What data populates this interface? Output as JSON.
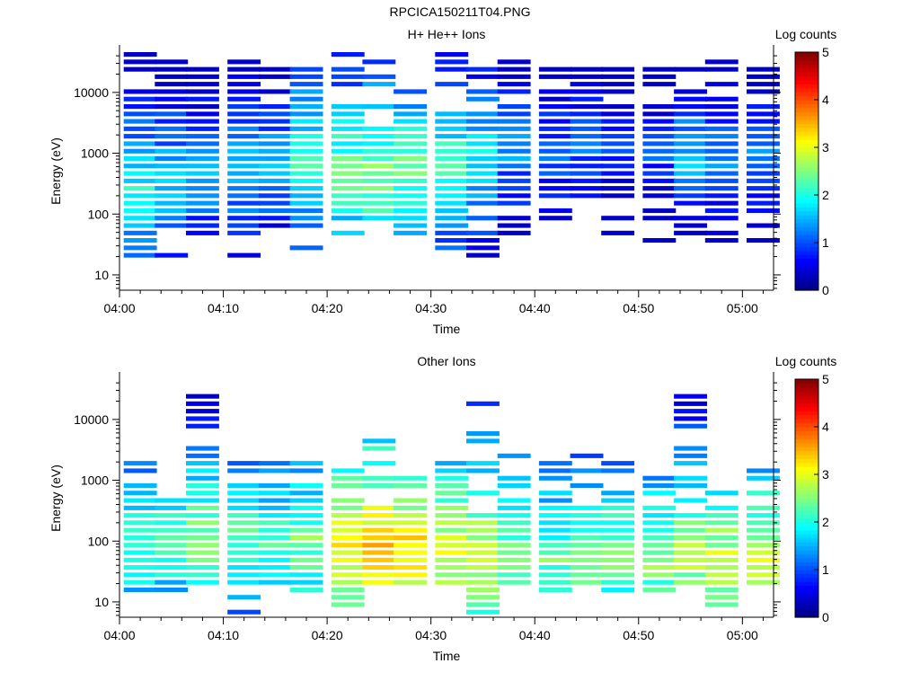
{
  "figure_title": "RPCICA150211T04.PNG",
  "chart_data": [
    {
      "type": "heatmap",
      "title": "H+ He++ Ions",
      "xlabel": "Time",
      "ylabel": "Energy (eV)",
      "yscale": "log",
      "ylim": [
        5.6,
        46000
      ],
      "xlim": [
        "04:00",
        "05:03"
      ],
      "xticks": [
        "04:00",
        "04:10",
        "04:20",
        "04:30",
        "04:40",
        "04:50",
        "05:00"
      ],
      "yticks": [
        "10",
        "100",
        "1000",
        "10000"
      ],
      "colorbar": {
        "label": "Log counts",
        "range": [
          0,
          5
        ],
        "ticks": [
          "0",
          "1",
          "2",
          "3",
          "4",
          "5"
        ]
      },
      "time_bins": [
        "04:02",
        "04:05",
        "04:08",
        "04:12",
        "04:15",
        "04:18",
        "04:22",
        "04:25",
        "04:28",
        "04:32",
        "04:35",
        "04:38",
        "04:42",
        "04:45",
        "04:48",
        "04:52",
        "04:55",
        "04:58",
        "05:02"
      ],
      "profiles": [
        {
          "low": 18,
          "high": 42000,
          "peak": 220,
          "level": 2.0,
          "sparse": 0.15
        },
        {
          "low": 18,
          "high": 38000,
          "peak": 300,
          "level": 1.8,
          "sparse": 0.2
        },
        {
          "low": 40,
          "high": 37000,
          "peak": 400,
          "level": 1.6,
          "sparse": 0.2
        },
        {
          "low": 18,
          "high": 36000,
          "peak": 550,
          "level": 1.7,
          "sparse": 0.25
        },
        {
          "low": 60,
          "high": 34000,
          "peak": 650,
          "level": 1.6,
          "sparse": 0.3
        },
        {
          "low": 22,
          "high": 34000,
          "peak": 700,
          "level": 2.2,
          "sparse": 0.3
        },
        {
          "low": 28,
          "high": 40000,
          "peak": 500,
          "level": 2.4,
          "sparse": 0.25
        },
        {
          "low": 30,
          "high": 34000,
          "peak": 400,
          "level": 2.6,
          "sparse": 0.3
        },
        {
          "low": 40,
          "high": 30000,
          "peak": 500,
          "level": 2.4,
          "sparse": 0.35
        },
        {
          "low": 25,
          "high": 40000,
          "peak": 700,
          "level": 2.2,
          "sparse": 0.3
        },
        {
          "low": 18,
          "high": 38000,
          "peak": 800,
          "level": 1.9,
          "sparse": 0.25
        },
        {
          "low": 45,
          "high": 35000,
          "peak": 1000,
          "level": 1.4,
          "sparse": 0.3
        },
        {
          "low": 70,
          "high": 28000,
          "peak": 1000,
          "level": 1.2,
          "sparse": 0.35
        },
        {
          "low": 90,
          "high": 30000,
          "peak": 1200,
          "level": 1.2,
          "sparse": 0.35
        },
        {
          "low": 45,
          "high": 30000,
          "peak": 1100,
          "level": 1.1,
          "sparse": 0.35
        },
        {
          "low": 25,
          "high": 34000,
          "peak": 1000,
          "level": 1.1,
          "sparse": 0.35
        },
        {
          "low": 40,
          "high": 30000,
          "peak": 800,
          "level": 1.6,
          "sparse": 0.3
        },
        {
          "low": 30,
          "high": 38000,
          "peak": 1000,
          "level": 1.4,
          "sparse": 0.3
        },
        {
          "low": 28,
          "high": 30000,
          "peak": 900,
          "level": 1.2,
          "sparse": 0.3
        }
      ]
    },
    {
      "type": "heatmap",
      "title": "Other Ions",
      "xlabel": "Time",
      "ylabel": "Energy (eV)",
      "yscale": "log",
      "ylim": [
        5.6,
        46000
      ],
      "xlim": [
        "04:00",
        "05:03"
      ],
      "xticks": [
        "04:00",
        "04:10",
        "04:20",
        "04:30",
        "04:40",
        "04:50",
        "05:00"
      ],
      "yticks": [
        "10",
        "100",
        "1000",
        "10000"
      ],
      "colorbar": {
        "label": "Log counts",
        "range": [
          0,
          5
        ],
        "ticks": [
          "0",
          "1",
          "2",
          "3",
          "4",
          "5"
        ]
      },
      "time_bins": [
        "04:02",
        "04:05",
        "04:08",
        "04:12",
        "04:15",
        "04:18",
        "04:22",
        "04:25",
        "04:28",
        "04:32",
        "04:35",
        "04:38",
        "04:42",
        "04:45",
        "04:48",
        "04:52",
        "04:55",
        "04:58",
        "05:02"
      ],
      "profiles": [
        {
          "low": 13,
          "high": 2000,
          "peak": 90,
          "level": 2.3,
          "sparse": 0.3
        },
        {
          "low": 13,
          "high": 550,
          "peak": 90,
          "level": 2.3,
          "sparse": 0.3
        },
        {
          "low": 18,
          "high": 23000,
          "peak": 100,
          "level": 2.6,
          "sparse": 0.3
        },
        {
          "low": 6,
          "high": 2200,
          "peak": 100,
          "level": 2.3,
          "sparse": 0.3
        },
        {
          "low": 13,
          "high": 2600,
          "peak": 100,
          "level": 2.2,
          "sparse": 0.3
        },
        {
          "low": 13,
          "high": 2500,
          "peak": 90,
          "level": 2.5,
          "sparse": 0.3
        },
        {
          "low": 6,
          "high": 1600,
          "peak": 70,
          "level": 3.2,
          "sparse": 0.3
        },
        {
          "low": 18,
          "high": 4300,
          "peak": 60,
          "level": 3.5,
          "sparse": 0.3
        },
        {
          "low": 18,
          "high": 2300,
          "peak": 60,
          "level": 3.4,
          "sparse": 0.3
        },
        {
          "low": 18,
          "high": 2300,
          "peak": 60,
          "level": 3.0,
          "sparse": 0.3
        },
        {
          "low": 6,
          "high": 19000,
          "peak": 50,
          "level": 3.0,
          "sparse": 0.3
        },
        {
          "low": 18,
          "high": 2600,
          "peak": 60,
          "level": 2.5,
          "sparse": 0.3
        },
        {
          "low": 13,
          "high": 2000,
          "peak": 50,
          "level": 2.4,
          "sparse": 0.3
        },
        {
          "low": 18,
          "high": 2700,
          "peak": 50,
          "level": 2.5,
          "sparse": 0.3
        },
        {
          "low": 13,
          "high": 2000,
          "peak": 60,
          "level": 2.5,
          "sparse": 0.3
        },
        {
          "low": 13,
          "high": 1800,
          "peak": 50,
          "level": 2.6,
          "sparse": 0.3
        },
        {
          "low": 18,
          "high": 29000,
          "peak": 50,
          "level": 2.8,
          "sparse": 0.3
        },
        {
          "low": 8,
          "high": 900,
          "peak": 45,
          "level": 2.9,
          "sparse": 0.3
        },
        {
          "low": 18,
          "high": 1700,
          "peak": 45,
          "level": 2.9,
          "sparse": 0.3
        }
      ]
    }
  ]
}
